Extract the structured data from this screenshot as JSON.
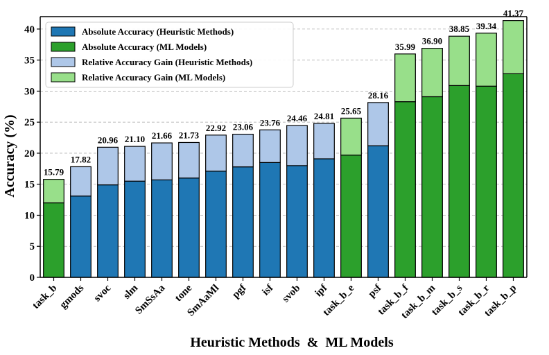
{
  "chart_data": {
    "type": "bar",
    "stacked": true,
    "categories": [
      "task_b",
      "gmods",
      "svoc",
      "slm",
      "SmSsAa",
      "tone",
      "SmAaMl",
      "pgf",
      "isf",
      "svob",
      "ipf",
      "task_b_e",
      "psf",
      "task_b_f",
      "task_b_m",
      "task_b_s",
      "task_b_r",
      "task_b_p"
    ],
    "group": [
      "ml",
      "heuristic",
      "heuristic",
      "heuristic",
      "heuristic",
      "heuristic",
      "heuristic",
      "heuristic",
      "heuristic",
      "heuristic",
      "heuristic",
      "ml",
      "heuristic",
      "ml",
      "ml",
      "ml",
      "ml",
      "ml"
    ],
    "series": [
      {
        "name": "Absolute Accuracy",
        "values": [
          12.0,
          13.1,
          14.9,
          15.5,
          15.7,
          16.0,
          17.1,
          17.8,
          18.5,
          18.0,
          19.1,
          19.7,
          21.2,
          28.3,
          29.1,
          30.9,
          30.8,
          32.8
        ]
      },
      {
        "name": "Relative Accuracy Gain",
        "values": [
          3.79,
          4.72,
          6.06,
          5.6,
          5.96,
          5.73,
          5.82,
          5.26,
          5.26,
          6.46,
          5.71,
          5.95,
          6.96,
          7.69,
          7.8,
          7.95,
          8.54,
          8.57
        ]
      }
    ],
    "totals": [
      "15.79",
      "17.82",
      "20.96",
      "21.10",
      "21.66",
      "21.73",
      "22.92",
      "23.06",
      "23.76",
      "24.46",
      "24.81",
      "25.65",
      "28.16",
      "35.99",
      "36.90",
      "38.85",
      "39.34",
      "41.37"
    ],
    "colors": {
      "abs_heuristic": "#1f77b4",
      "abs_ml": "#2ca02c",
      "gain_heuristic": "#aec7e8",
      "gain_ml": "#98df8a"
    },
    "legend": [
      {
        "label": "Absolute Accuracy (Heuristic Methods)",
        "color": "#1f77b4"
      },
      {
        "label": "Absolute Accuracy (ML Models)",
        "color": "#2ca02c"
      },
      {
        "label": "Relative Accuracy Gain (Heuristic Methods)",
        "color": "#aec7e8"
      },
      {
        "label": "Relative Accuracy Gain (ML Models)",
        "color": "#98df8a"
      }
    ],
    "legend_position": "top-left",
    "xlabel": "Heuristic Methods  &  ML Models",
    "ylabel": "Accuracy (%)",
    "yticks": [
      0,
      5,
      10,
      15,
      20,
      25,
      30,
      35,
      40
    ],
    "ylim": [
      0,
      42
    ],
    "grid": true
  }
}
